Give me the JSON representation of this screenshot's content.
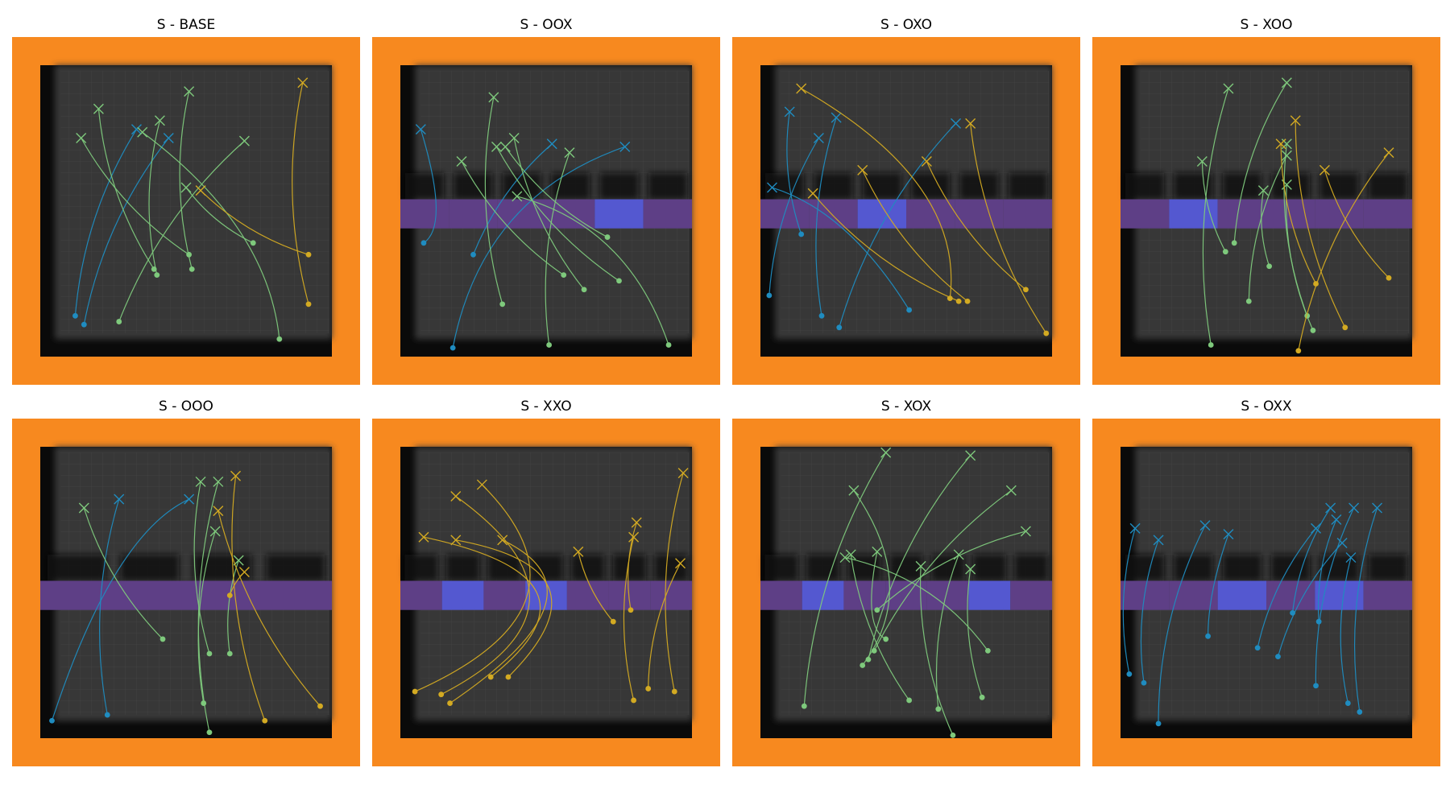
{
  "colors": {
    "frame": "#f7891f",
    "floor": "#373737",
    "shadow": "#0a0a0a",
    "door_closed": "#5e3f86",
    "door_open": "#5458d0",
    "blue": "#1f8cc0",
    "green": "#7ec97c",
    "yellow": "#d3aa22"
  },
  "panels": [
    {
      "title": "S - BASE",
      "doors": [],
      "paths": [
        {
          "c": "blue",
          "s": [
            0.12,
            0.86
          ],
          "e": [
            0.33,
            0.22
          ]
        },
        {
          "c": "blue",
          "s": [
            0.15,
            0.89
          ],
          "e": [
            0.44,
            0.25
          ]
        },
        {
          "c": "green",
          "s": [
            0.27,
            0.88
          ],
          "e": [
            0.7,
            0.26
          ]
        },
        {
          "c": "green",
          "s": [
            0.39,
            0.7
          ],
          "e": [
            0.2,
            0.15
          ]
        },
        {
          "c": "green",
          "s": [
            0.4,
            0.72
          ],
          "e": [
            0.41,
            0.19
          ]
        },
        {
          "c": "green",
          "s": [
            0.51,
            0.65
          ],
          "e": [
            0.14,
            0.25
          ]
        },
        {
          "c": "green",
          "s": [
            0.52,
            0.7
          ],
          "e": [
            0.51,
            0.09
          ]
        },
        {
          "c": "green",
          "s": [
            0.73,
            0.61
          ],
          "e": [
            0.5,
            0.42
          ]
        },
        {
          "c": "green",
          "s": [
            0.82,
            0.94
          ],
          "e": [
            0.35,
            0.23
          ],
          "w": [
            0.78,
            0.55
          ]
        },
        {
          "c": "yellow",
          "s": [
            0.92,
            0.65
          ],
          "e": [
            0.55,
            0.43
          ]
        },
        {
          "c": "yellow",
          "s": [
            0.92,
            0.82
          ],
          "e": [
            0.9,
            0.06
          ]
        }
      ]
    },
    {
      "title": "S - OOX",
      "doors": [
        "c",
        "c",
        "c",
        "c",
        "o",
        "c"
      ],
      "paths": [
        {
          "c": "blue",
          "s": [
            0.08,
            0.61
          ],
          "e": [
            0.07,
            0.22
          ],
          "w": [
            0.17,
            0.55
          ]
        },
        {
          "c": "blue",
          "s": [
            0.18,
            0.97
          ],
          "e": [
            0.77,
            0.28
          ],
          "w": [
            0.28,
            0.45
          ]
        },
        {
          "c": "blue",
          "s": [
            0.25,
            0.65
          ],
          "e": [
            0.52,
            0.27
          ]
        },
        {
          "c": "green",
          "s": [
            0.35,
            0.82
          ],
          "e": [
            0.32,
            0.11
          ]
        },
        {
          "c": "green",
          "s": [
            0.51,
            0.96
          ],
          "e": [
            0.58,
            0.3
          ]
        },
        {
          "c": "green",
          "s": [
            0.56,
            0.72
          ],
          "e": [
            0.21,
            0.33
          ]
        },
        {
          "c": "green",
          "s": [
            0.63,
            0.77
          ],
          "e": [
            0.39,
            0.25
          ]
        },
        {
          "c": "green",
          "s": [
            0.71,
            0.59
          ],
          "e": [
            0.36,
            0.28
          ]
        },
        {
          "c": "green",
          "s": [
            0.75,
            0.74
          ],
          "e": [
            0.33,
            0.28
          ]
        },
        {
          "c": "green",
          "s": [
            0.92,
            0.96
          ],
          "e": [
            0.4,
            0.45
          ],
          "w": [
            0.78,
            0.55
          ]
        }
      ]
    },
    {
      "title": "S - OXO",
      "doors": [
        "c",
        "c",
        "o",
        "c",
        "c",
        "c"
      ],
      "paths": [
        {
          "c": "blue",
          "s": [
            0.03,
            0.79
          ],
          "e": [
            0.2,
            0.25
          ]
        },
        {
          "c": "blue",
          "s": [
            0.14,
            0.58
          ],
          "e": [
            0.1,
            0.16
          ]
        },
        {
          "c": "blue",
          "s": [
            0.21,
            0.86
          ],
          "e": [
            0.26,
            0.18
          ]
        },
        {
          "c": "blue",
          "s": [
            0.27,
            0.9
          ],
          "e": [
            0.67,
            0.2
          ]
        },
        {
          "c": "blue",
          "s": [
            0.51,
            0.84
          ],
          "e": [
            0.04,
            0.42
          ],
          "w": [
            0.3,
            0.5
          ]
        },
        {
          "c": "yellow",
          "s": [
            0.65,
            0.8
          ],
          "e": [
            0.14,
            0.08
          ],
          "w": [
            0.7,
            0.4
          ]
        },
        {
          "c": "yellow",
          "s": [
            0.68,
            0.81
          ],
          "e": [
            0.18,
            0.44
          ]
        },
        {
          "c": "yellow",
          "s": [
            0.71,
            0.81
          ],
          "e": [
            0.35,
            0.36
          ]
        },
        {
          "c": "yellow",
          "s": [
            0.91,
            0.77
          ],
          "e": [
            0.57,
            0.33
          ]
        },
        {
          "c": "yellow",
          "s": [
            0.98,
            0.92
          ],
          "e": [
            0.72,
            0.2
          ]
        }
      ]
    },
    {
      "title": "S - XOO",
      "doors": [
        "c",
        "o",
        "c",
        "c",
        "c",
        "c"
      ],
      "paths": [
        {
          "c": "green",
          "s": [
            0.31,
            0.96
          ],
          "e": [
            0.37,
            0.08
          ]
        },
        {
          "c": "green",
          "s": [
            0.36,
            0.64
          ],
          "e": [
            0.28,
            0.33
          ]
        },
        {
          "c": "green",
          "s": [
            0.39,
            0.61
          ],
          "e": [
            0.57,
            0.06
          ]
        },
        {
          "c": "green",
          "s": [
            0.44,
            0.81
          ],
          "e": [
            0.57,
            0.31
          ]
        },
        {
          "c": "green",
          "s": [
            0.51,
            0.69
          ],
          "e": [
            0.49,
            0.43
          ]
        },
        {
          "c": "green",
          "s": [
            0.64,
            0.86
          ],
          "e": [
            0.57,
            0.27
          ]
        },
        {
          "c": "green",
          "s": [
            0.66,
            0.91
          ],
          "e": [
            0.57,
            0.41
          ]
        },
        {
          "c": "yellow",
          "s": [
            0.61,
            0.98
          ],
          "e": [
            0.92,
            0.3
          ]
        },
        {
          "c": "yellow",
          "s": [
            0.67,
            0.75
          ],
          "e": [
            0.55,
            0.27
          ]
        },
        {
          "c": "yellow",
          "s": [
            0.77,
            0.9
          ],
          "e": [
            0.6,
            0.19
          ]
        },
        {
          "c": "yellow",
          "s": [
            0.92,
            0.73
          ],
          "e": [
            0.7,
            0.36
          ]
        }
      ]
    },
    {
      "title": "S - OOO",
      "doors": [
        "c",
        "c",
        "c",
        "c"
      ],
      "paths": [
        {
          "c": "blue",
          "s": [
            0.04,
            0.94
          ],
          "e": [
            0.51,
            0.18
          ],
          "w": [
            0.25,
            0.3
          ]
        },
        {
          "c": "blue",
          "s": [
            0.23,
            0.92
          ],
          "e": [
            0.27,
            0.18
          ]
        },
        {
          "c": "green",
          "s": [
            0.42,
            0.66
          ],
          "e": [
            0.15,
            0.21
          ]
        },
        {
          "c": "green",
          "s": [
            0.58,
            0.71
          ],
          "e": [
            0.55,
            0.12
          ]
        },
        {
          "c": "green",
          "s": [
            0.56,
            0.88
          ],
          "e": [
            0.6,
            0.29
          ]
        },
        {
          "c": "green",
          "s": [
            0.58,
            0.98
          ],
          "e": [
            0.61,
            0.12
          ]
        },
        {
          "c": "green",
          "s": [
            0.65,
            0.71
          ],
          "e": [
            0.68,
            0.39
          ]
        },
        {
          "c": "yellow",
          "s": [
            0.65,
            0.51
          ],
          "e": [
            0.7,
            0.43
          ]
        },
        {
          "c": "yellow",
          "s": [
            0.77,
            0.94
          ],
          "e": [
            0.67,
            0.1
          ]
        },
        {
          "c": "yellow",
          "s": [
            0.96,
            0.89
          ],
          "e": [
            0.61,
            0.22
          ]
        }
      ]
    },
    {
      "title": "S - XXO",
      "doors": [
        "c",
        "o",
        "c",
        "o",
        "c",
        "c",
        "c"
      ],
      "paths": [
        {
          "c": "yellow",
          "s": [
            0.05,
            0.84
          ],
          "e": [
            0.28,
            0.13
          ],
          "w": [
            0.7,
            0.55
          ]
        },
        {
          "c": "yellow",
          "s": [
            0.14,
            0.85
          ],
          "e": [
            0.19,
            0.17
          ],
          "w": [
            0.72,
            0.55
          ]
        },
        {
          "c": "yellow",
          "s": [
            0.17,
            0.88
          ],
          "e": [
            0.35,
            0.32
          ],
          "w": [
            0.73,
            0.5
          ]
        },
        {
          "c": "yellow",
          "s": [
            0.31,
            0.79
          ],
          "e": [
            0.08,
            0.31
          ],
          "w": [
            0.74,
            0.45
          ]
        },
        {
          "c": "yellow",
          "s": [
            0.37,
            0.79
          ],
          "e": [
            0.19,
            0.32
          ],
          "w": [
            0.74,
            0.42
          ]
        },
        {
          "c": "yellow",
          "s": [
            0.73,
            0.6
          ],
          "e": [
            0.61,
            0.36
          ]
        },
        {
          "c": "yellow",
          "s": [
            0.79,
            0.56
          ],
          "e": [
            0.81,
            0.26
          ]
        },
        {
          "c": "yellow",
          "s": [
            0.8,
            0.87
          ],
          "e": [
            0.8,
            0.31
          ]
        },
        {
          "c": "yellow",
          "s": [
            0.85,
            0.83
          ],
          "e": [
            0.96,
            0.4
          ]
        },
        {
          "c": "yellow",
          "s": [
            0.94,
            0.84
          ],
          "e": [
            0.97,
            0.09
          ]
        }
      ]
    },
    {
      "title": "S - XOX",
      "doors": [
        "c",
        "o",
        "c",
        "c",
        "c",
        "o",
        "c"
      ],
      "paths": [
        {
          "c": "green",
          "s": [
            0.15,
            0.89
          ],
          "e": [
            0.43,
            0.02
          ]
        },
        {
          "c": "green",
          "s": [
            0.35,
            0.75
          ],
          "e": [
            0.32,
            0.15
          ],
          "w": [
            0.55,
            0.48
          ]
        },
        {
          "c": "green",
          "s": [
            0.37,
            0.73
          ],
          "e": [
            0.72,
            0.03
          ]
        },
        {
          "c": "green",
          "s": [
            0.39,
            0.7
          ],
          "e": [
            0.86,
            0.15
          ]
        },
        {
          "c": "green",
          "s": [
            0.4,
            0.56
          ],
          "e": [
            0.91,
            0.29
          ]
        },
        {
          "c": "green",
          "s": [
            0.43,
            0.66
          ],
          "e": [
            0.4,
            0.36
          ],
          "w": [
            0.35,
            0.62
          ]
        },
        {
          "c": "green",
          "s": [
            0.51,
            0.87
          ],
          "e": [
            0.31,
            0.37
          ]
        },
        {
          "c": "green",
          "s": [
            0.61,
            0.9
          ],
          "e": [
            0.68,
            0.37
          ]
        },
        {
          "c": "green",
          "s": [
            0.66,
            0.99
          ],
          "e": [
            0.55,
            0.41
          ]
        },
        {
          "c": "green",
          "s": [
            0.76,
            0.86
          ],
          "e": [
            0.72,
            0.42
          ]
        },
        {
          "c": "green",
          "s": [
            0.78,
            0.7
          ],
          "e": [
            0.29,
            0.38
          ],
          "w": [
            0.6,
            0.45
          ]
        }
      ]
    },
    {
      "title": "S - OXX",
      "doors": [
        "c",
        "c",
        "o",
        "c",
        "o",
        "c"
      ],
      "paths": [
        {
          "c": "blue",
          "s": [
            0.03,
            0.78
          ],
          "e": [
            0.05,
            0.28
          ]
        },
        {
          "c": "blue",
          "s": [
            0.08,
            0.81
          ],
          "e": [
            0.13,
            0.32
          ]
        },
        {
          "c": "blue",
          "s": [
            0.13,
            0.95
          ],
          "e": [
            0.29,
            0.27
          ]
        },
        {
          "c": "blue",
          "s": [
            0.3,
            0.65
          ],
          "e": [
            0.37,
            0.3
          ],
          "w": [
            0.3,
            0.5
          ]
        },
        {
          "c": "blue",
          "s": [
            0.47,
            0.69
          ],
          "e": [
            0.67,
            0.28
          ]
        },
        {
          "c": "blue",
          "s": [
            0.54,
            0.72
          ],
          "e": [
            0.76,
            0.33
          ]
        },
        {
          "c": "blue",
          "s": [
            0.59,
            0.57
          ],
          "e": [
            0.72,
            0.21
          ]
        },
        {
          "c": "blue",
          "s": [
            0.68,
            0.6
          ],
          "e": [
            0.74,
            0.25
          ]
        },
        {
          "c": "blue",
          "s": [
            0.67,
            0.82
          ],
          "e": [
            0.8,
            0.21
          ]
        },
        {
          "c": "blue",
          "s": [
            0.78,
            0.88
          ],
          "e": [
            0.79,
            0.38
          ]
        },
        {
          "c": "blue",
          "s": [
            0.82,
            0.91
          ],
          "e": [
            0.88,
            0.21
          ]
        }
      ]
    }
  ]
}
